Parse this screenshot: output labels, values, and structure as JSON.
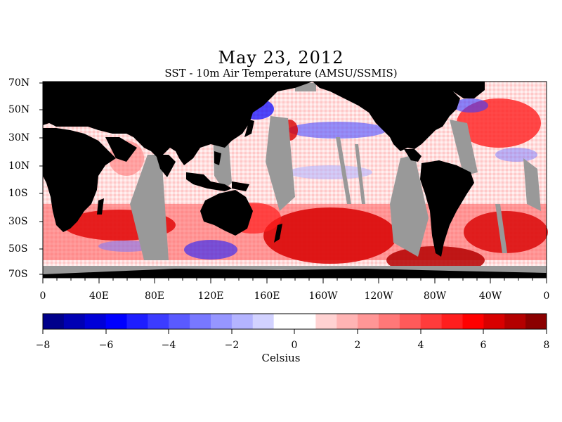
{
  "title": "May 23, 2012",
  "subtitle": "SST - 10m Air Temperature (AMSU/SSMIS)",
  "lat_labels": [
    "70N",
    "50N",
    "30N",
    "10N",
    "10S",
    "30S",
    "50S",
    "70S"
  ],
  "lon_labels": [
    "0",
    "40E",
    "80E",
    "120E",
    "160E",
    "160W",
    "120W",
    "80W",
    "40W",
    "0"
  ],
  "colorbar": {
    "ticks": [
      "−8",
      "−6",
      "−4",
      "−2",
      "0",
      "2",
      "4",
      "6",
      "8"
    ],
    "units": "Celsius",
    "range": [
      -8,
      8
    ],
    "colors": [
      "#00008b",
      "#0000b4",
      "#0000d8",
      "#0000ff",
      "#1e1eff",
      "#3c3cff",
      "#5a5aff",
      "#7878ff",
      "#9696ff",
      "#b4b4ff",
      "#d2d2ff",
      "#ffffff",
      "#ffffff",
      "#ffd2d2",
      "#ffb4b4",
      "#ff9696",
      "#ff7878",
      "#ff5a5a",
      "#ff3c3c",
      "#ff1e1e",
      "#ff0000",
      "#d80000",
      "#b40000",
      "#8b0000"
    ]
  },
  "map_colors": {
    "land": "#000000",
    "nodata": "#999999",
    "ocean_base": "#ffe6e6"
  }
}
